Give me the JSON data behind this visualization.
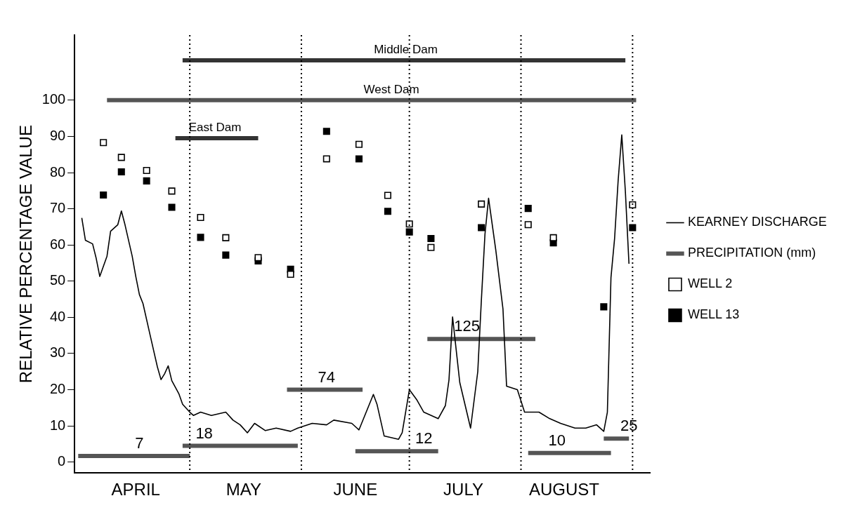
{
  "chart_data": {
    "type": "line",
    "ylabel": "RELATIVE PERCENTAGE VALUE",
    "xlim": [
      "--03-30",
      "--09-06"
    ],
    "xticks": [
      {
        "value": "--04-16",
        "label": "APRIL"
      },
      {
        "value": "--05-16",
        "label": "MAY"
      },
      {
        "value": "--06-16",
        "label": "JUNE"
      },
      {
        "value": "--07-16",
        "label": "JULY"
      },
      {
        "value": "--08-13",
        "label": "AUGUST"
      }
    ],
    "ylim": [
      -3,
      118
    ],
    "yticks": [
      0,
      10,
      20,
      30,
      40,
      50,
      60,
      70,
      80,
      90,
      100
    ],
    "grid": false,
    "legend": "right",
    "series": [
      {
        "name": "KEARNEY DISCHARGE",
        "color": "#000000",
        "marker": "none",
        "x": [
          "--04-01",
          "--04-02",
          "--04-04",
          "--04-05",
          "--04-06",
          "--04-08",
          "--04-09",
          "--04-11",
          "--04-12",
          "--04-13",
          "--04-15",
          "--04-16",
          "--04-17",
          "--04-18",
          "--04-20",
          "--04-22",
          "--04-23",
          "--04-24",
          "--04-25",
          "--04-26",
          "--04-28",
          "--04-29",
          "--05-01",
          "--05-02",
          "--05-04",
          "--05-07",
          "--05-11",
          "--05-13",
          "--05-15",
          "--05-17",
          "--05-19",
          "--05-22",
          "--05-25",
          "--05-29",
          "--05-31",
          "--06-04",
          "--06-08",
          "--06-10",
          "--06-15",
          "--06-17",
          "--06-21",
          "--06-22",
          "--06-24",
          "--06-28",
          "--06-29",
          "--07-01",
          "--07-03",
          "--07-05",
          "--07-09",
          "--07-11",
          "--07-12",
          "--07-13",
          "--07-15",
          "--07-18",
          "--07-20",
          "--07-21",
          "--07-22",
          "--07-23",
          "--07-25",
          "--07-27",
          "--07-28",
          "--07-31",
          "--08-02",
          "--08-06",
          "--08-09",
          "--08-12",
          "--08-16",
          "--08-19",
          "--08-22",
          "--08-24",
          "--08-25",
          "--08-26",
          "--08-27",
          "--08-28",
          "--08-29",
          "--08-30",
          "--08-31"
        ],
        "values": [
          67.5,
          61.3,
          60.3,
          56.3,
          51.3,
          56.9,
          63.8,
          65.6,
          69.4,
          65.6,
          56.9,
          51.3,
          46.3,
          43.8,
          35,
          26.3,
          22.8,
          24.4,
          26.6,
          22.5,
          18.8,
          16,
          13.8,
          12.9,
          13.8,
          12.9,
          13.8,
          11.6,
          10.3,
          8.1,
          10.7,
          8.7,
          9.4,
          8.5,
          9.4,
          10.7,
          10.3,
          11.6,
          10.7,
          8.9,
          18.7,
          16,
          7.2,
          6.3,
          8.1,
          20,
          17.3,
          13.8,
          12,
          15.6,
          22.7,
          40.1,
          22,
          9.4,
          25,
          44.8,
          63,
          72.9,
          58.6,
          42.3,
          21,
          20,
          13.8,
          13.8,
          12,
          10.7,
          9.4,
          9.4,
          10.3,
          8.5,
          13.8,
          51,
          61.7,
          77.9,
          90.4,
          74.8,
          54.8
        ]
      },
      {
        "name": "PRECIPITATION (mm)",
        "color": "#555555",
        "marker": "none",
        "x": [
          "--03-31",
          "--05-01",
          null,
          "--04-29",
          "--05-31",
          null,
          "--05-28",
          "--06-18",
          null,
          "--06-16",
          "--07-09",
          null,
          "--07-06",
          "--08-05",
          null,
          "--08-03",
          "--08-26",
          null,
          "--08-24",
          "--08-31"
        ],
        "values": [
          1.7,
          1.7,
          null,
          4.5,
          4.5,
          null,
          20,
          20,
          null,
          3,
          3,
          null,
          34,
          34,
          null,
          2.5,
          2.5,
          null,
          6.5,
          6.5
        ]
      },
      {
        "name": "WELL 2",
        "type": "scatter",
        "color": "#ffffff",
        "marker": "square",
        "x": [
          "--04-07",
          "--04-12",
          "--04-19",
          "--04-26",
          "--05-04",
          "--05-11",
          "--05-20",
          "--05-29",
          "--06-08",
          "--06-17",
          "--06-25",
          "--07-01",
          "--07-07",
          "--07-21",
          "--08-03",
          "--08-10",
          "--09-01"
        ],
        "values": [
          88.3,
          84.2,
          80.6,
          74.9,
          67.6,
          62,
          56.5,
          51.9,
          83.8,
          87.8,
          73.7,
          65.8,
          59.3,
          71.3,
          65.6,
          62,
          71.1
        ]
      },
      {
        "name": "WELL 13",
        "type": "scatter",
        "color": "#000000",
        "marker": "square",
        "x": [
          "--04-07",
          "--04-12",
          "--04-19",
          "--04-26",
          "--05-04",
          "--05-11",
          "--05-20",
          "--05-29",
          "--06-08",
          "--06-17",
          "--06-25",
          "--07-01",
          "--07-07",
          "--07-21",
          "--08-03",
          "--08-10",
          "--08-24",
          "--09-01"
        ],
        "values": [
          73.8,
          80.2,
          77.7,
          70.4,
          62.1,
          57.2,
          55.6,
          53.3,
          91.4,
          83.8,
          69.3,
          63.6,
          61.8,
          64.8,
          70.1,
          60.6,
          42.9,
          64.8
        ]
      },
      {
        "color": "#555555",
        "marker": "none",
        "x": [
          "--04-08",
          "--09-02"
        ],
        "values": [
          100,
          100
        ]
      },
      {
        "color": "#333333",
        "marker": "none",
        "x": [
          "--04-27",
          "--05-20"
        ],
        "values": [
          89.5,
          89.5
        ]
      },
      {
        "color": "#333333",
        "marker": "none",
        "x": [
          "--04-29",
          "--08-30"
        ],
        "values": [
          111,
          111
        ]
      }
    ],
    "ref_lines": [
      {
        "axis": "x",
        "value": "--05-01",
        "line_style": "dotted"
      },
      {
        "axis": "x",
        "value": "--06-01",
        "line_style": "dotted"
      },
      {
        "axis": "x",
        "value": "--07-01",
        "line_style": "dotted"
      },
      {
        "axis": "x",
        "value": "--08-01",
        "line_style": "dotted"
      },
      {
        "axis": "x",
        "value": "--09-01",
        "line_style": "dotted"
      }
    ],
    "annotations": [
      {
        "text": "Middle Dam",
        "x": "--06-30",
        "y": 111
      },
      {
        "text": "West Dam",
        "x": "--06-26",
        "y": 100
      },
      {
        "text": "East Dam",
        "x": "--05-08",
        "y": 89.5
      },
      {
        "text": "7",
        "x": "--04-17",
        "y": 1.7
      },
      {
        "text": "18",
        "x": "--05-05",
        "y": 4.5
      },
      {
        "text": "74",
        "x": "--06-08",
        "y": 20
      },
      {
        "text": "12",
        "x": "--07-05",
        "y": 3
      },
      {
        "text": "125",
        "x": "--07-17",
        "y": 34
      },
      {
        "text": "10",
        "x": "--08-11",
        "y": 2.5
      },
      {
        "text": "25",
        "x": "--08-31",
        "y": 6.5
      }
    ]
  }
}
